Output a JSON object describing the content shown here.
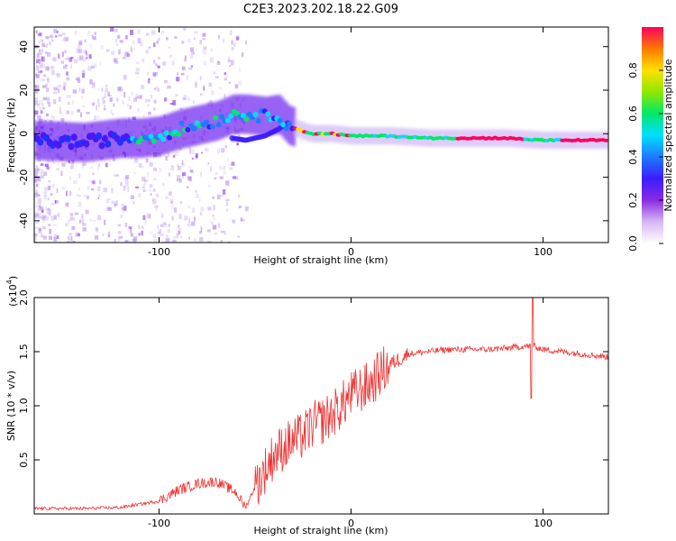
{
  "figure": {
    "title": "C2E3.2023.202.18.22.G09"
  },
  "chart_data": [
    {
      "type": "heatmap",
      "xlabel": "Height of straight line (km)",
      "ylabel": "Frequency (Hz)",
      "xlim": [
        -165,
        134
      ],
      "ylim": [
        -50,
        49
      ],
      "xticks": [
        -100,
        0,
        100
      ],
      "yticks": [
        -40,
        -20,
        0,
        20,
        40
      ],
      "grid": false,
      "ridge": {
        "x": [
          -165,
          -140,
          -120,
          -110,
          -100,
          -90,
          -80,
          -70,
          -62,
          -55,
          -45,
          -38,
          -33,
          -30,
          -25,
          -20,
          -10,
          0,
          10,
          20,
          40,
          60,
          80,
          100,
          120,
          134
        ],
        "y": [
          -3,
          -4,
          -2,
          -2,
          -1,
          2,
          4,
          6,
          9,
          9,
          8,
          9,
          4,
          3,
          1,
          0,
          0,
          -1,
          -1,
          -1,
          -2,
          -2,
          -2,
          -3,
          -3,
          -3
        ]
      },
      "secondary_band": {
        "x": [
          -62,
          -55,
          -45,
          -38,
          -33
        ],
        "y": [
          -2,
          -3,
          -1,
          2,
          5
        ]
      },
      "colorbar": {
        "label": "Normalized spectral amplitude",
        "range": [
          0,
          1
        ],
        "ticks": [
          0.0,
          0.2,
          0.4,
          0.6,
          0.8
        ],
        "tick_labels": [
          "0.0",
          "0.2",
          "0.4",
          "0.6",
          "0.8"
        ]
      }
    },
    {
      "type": "line",
      "xlabel": "Height of straight line (km)",
      "ylabel": "SNR (10 * v/v)",
      "scale_label": "(x10",
      "scale_exponent": "4",
      "scale_close": ")",
      "xlim": [
        -165,
        134
      ],
      "ylim": [
        0,
        2.0
      ],
      "xticks": [
        -100,
        0,
        100
      ],
      "yticks": [
        0.5,
        1.0,
        1.5,
        2.0
      ],
      "ytick_labels": [
        "0.5",
        "1.0",
        "1.5",
        "2.0"
      ],
      "grid": false,
      "color": "#ee3333",
      "series": [
        {
          "x": [
            -165,
            -140,
            -120,
            -100,
            -90,
            -80,
            -70,
            -60,
            -55,
            -50,
            -45,
            -40,
            -35,
            -30,
            -25,
            -20,
            -15,
            -10,
            -5,
            0,
            5,
            10,
            15,
            20,
            25,
            30,
            40,
            50,
            60,
            70,
            80,
            90,
            95,
            100,
            110,
            120,
            134
          ],
          "y": [
            0.05,
            0.05,
            0.06,
            0.12,
            0.22,
            0.28,
            0.3,
            0.2,
            0.06,
            0.25,
            0.4,
            0.55,
            0.62,
            0.68,
            0.72,
            0.82,
            0.86,
            0.92,
            1.0,
            1.1,
            1.15,
            1.2,
            1.3,
            1.38,
            1.43,
            1.48,
            1.5,
            1.52,
            1.52,
            1.52,
            1.53,
            1.55,
            1.55,
            1.52,
            1.5,
            1.48,
            1.45
          ]
        }
      ]
    }
  ]
}
